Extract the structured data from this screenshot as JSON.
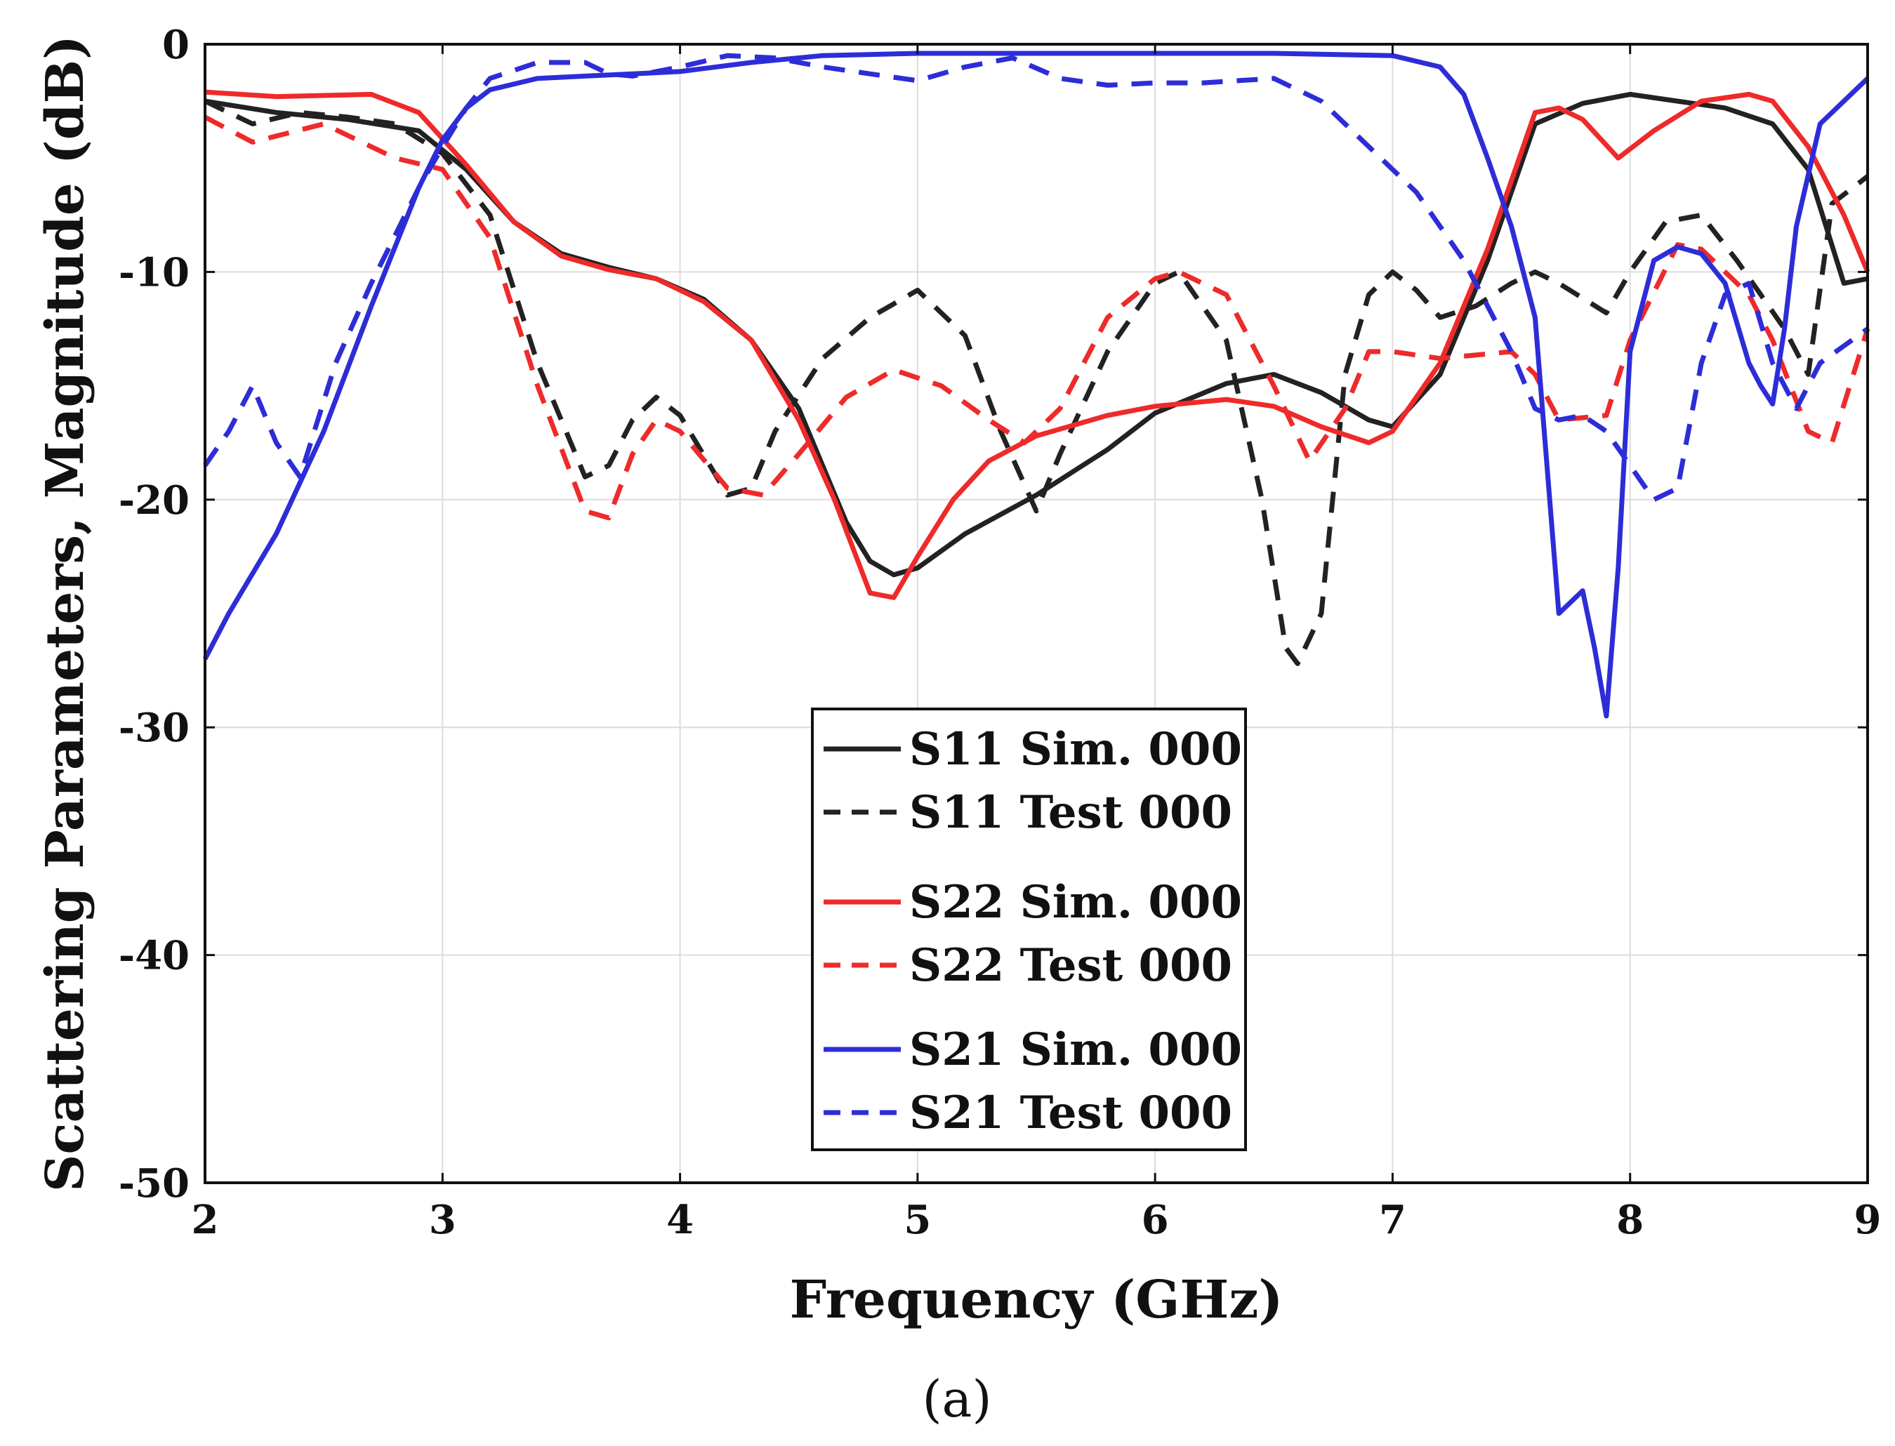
{
  "chart_data": {
    "type": "line",
    "title": "",
    "xlabel": "Frequency (GHz)",
    "ylabel": "Scattering Parameters, Magnitude (dB)",
    "xlim": [
      2,
      9
    ],
    "ylim": [
      -50,
      0
    ],
    "xticks": [
      2,
      3,
      4,
      5,
      6,
      7,
      8,
      9
    ],
    "yticks": [
      0,
      -10,
      -20,
      -30,
      -40,
      -50
    ],
    "grid": true,
    "legend_position": "bottom-center",
    "caption": "(a)",
    "series": [
      {
        "name": "S11 Sim. 000",
        "color": "#222222",
        "dash": "solid",
        "x": [
          2,
          2.3,
          2.6,
          2.9,
          3.1,
          3.3,
          3.5,
          3.7,
          3.9,
          4.1,
          4.3,
          4.5,
          4.7,
          4.8,
          4.9,
          5.0,
          5.2,
          5.5,
          5.8,
          6.0,
          6.3,
          6.5,
          6.7,
          6.9,
          7.0,
          7.2,
          7.4,
          7.6,
          7.8,
          8.0,
          8.2,
          8.4,
          8.6,
          8.75,
          8.9,
          9.0
        ],
        "y": [
          -2.5,
          -3.0,
          -3.3,
          -3.8,
          -5.5,
          -7.8,
          -9.2,
          -9.8,
          -10.3,
          -11.2,
          -13.0,
          -16.0,
          -21.0,
          -22.7,
          -23.3,
          -23.0,
          -21.5,
          -19.8,
          -17.8,
          -16.2,
          -14.9,
          -14.5,
          -15.3,
          -16.5,
          -16.8,
          -14.5,
          -9.5,
          -3.5,
          -2.6,
          -2.2,
          -2.5,
          -2.8,
          -3.5,
          -5.5,
          -10.5,
          -10.3
        ]
      },
      {
        "name": "S11 Test 000",
        "color": "#222222",
        "dash": "dashed",
        "x": [
          2,
          2.2,
          2.4,
          2.6,
          2.8,
          3.0,
          3.2,
          3.4,
          3.6,
          3.7,
          3.8,
          3.9,
          4.0,
          4.2,
          4.3,
          4.4,
          4.6,
          4.8,
          5.0,
          5.2,
          5.35,
          5.5,
          5.6,
          5.8,
          6.0,
          6.1,
          6.3,
          6.45,
          6.55,
          6.6,
          6.7,
          6.8,
          6.9,
          7.0,
          7.1,
          7.2,
          7.35,
          7.5,
          7.6,
          7.7,
          7.9,
          8.0,
          8.15,
          8.3,
          8.45,
          8.55,
          8.65,
          8.75,
          8.85,
          9.0
        ],
        "y": [
          -2.5,
          -3.5,
          -3.0,
          -3.2,
          -3.5,
          -4.8,
          -7.5,
          -14.0,
          -19.0,
          -18.5,
          -16.5,
          -15.5,
          -16.3,
          -19.8,
          -19.5,
          -17.0,
          -13.8,
          -12.0,
          -10.8,
          -12.8,
          -17.0,
          -20.5,
          -18.0,
          -13.5,
          -10.5,
          -10.0,
          -13.0,
          -20.0,
          -26.5,
          -27.2,
          -25.0,
          -14.5,
          -11.0,
          -10.0,
          -10.8,
          -12.0,
          -11.5,
          -10.5,
          -10.0,
          -10.5,
          -11.8,
          -10.0,
          -7.8,
          -7.5,
          -9.5,
          -11.0,
          -12.5,
          -14.5,
          -7.0,
          -5.8
        ]
      },
      {
        "name": "S22 Sim. 000",
        "color": "#ee2a2a",
        "dash": "solid",
        "x": [
          2,
          2.3,
          2.7,
          2.9,
          3.1,
          3.3,
          3.5,
          3.7,
          3.9,
          4.1,
          4.3,
          4.5,
          4.65,
          4.8,
          4.9,
          5.0,
          5.15,
          5.3,
          5.5,
          5.8,
          6.0,
          6.3,
          6.5,
          6.7,
          6.9,
          7.0,
          7.2,
          7.4,
          7.6,
          7.7,
          7.8,
          7.95,
          8.1,
          8.3,
          8.5,
          8.6,
          8.75,
          8.9,
          9.0
        ],
        "y": [
          -2.1,
          -2.3,
          -2.2,
          -3.0,
          -5.3,
          -7.8,
          -9.3,
          -9.9,
          -10.3,
          -11.3,
          -13.0,
          -16.5,
          -20.0,
          -24.1,
          -24.3,
          -22.5,
          -20.0,
          -18.3,
          -17.2,
          -16.3,
          -15.9,
          -15.6,
          -15.9,
          -16.8,
          -17.5,
          -17.0,
          -14.0,
          -9.0,
          -3.0,
          -2.8,
          -3.3,
          -5.0,
          -3.8,
          -2.5,
          -2.2,
          -2.5,
          -4.5,
          -7.5,
          -10.0
        ]
      },
      {
        "name": "S22 Test 000",
        "color": "#ee2a2a",
        "dash": "dashed",
        "x": [
          2,
          2.2,
          2.5,
          2.8,
          3.0,
          3.2,
          3.4,
          3.6,
          3.7,
          3.8,
          3.9,
          4.0,
          4.2,
          4.35,
          4.5,
          4.7,
          4.9,
          5.1,
          5.3,
          5.45,
          5.6,
          5.8,
          6.0,
          6.1,
          6.3,
          6.5,
          6.65,
          6.8,
          6.9,
          7.0,
          7.2,
          7.5,
          7.6,
          7.7,
          7.9,
          8.0,
          8.2,
          8.3,
          8.5,
          8.6,
          8.75,
          8.85,
          9.0
        ],
        "y": [
          -3.2,
          -4.3,
          -3.5,
          -5.0,
          -5.5,
          -8.5,
          -15.0,
          -20.5,
          -20.8,
          -18.0,
          -16.5,
          -17.0,
          -19.5,
          -19.8,
          -18.0,
          -15.5,
          -14.3,
          -15.0,
          -16.5,
          -17.5,
          -16.0,
          -12.0,
          -10.3,
          -10.0,
          -11.0,
          -15.0,
          -18.3,
          -16.0,
          -13.5,
          -13.5,
          -13.8,
          -13.5,
          -14.5,
          -16.5,
          -16.3,
          -13.0,
          -8.8,
          -9.0,
          -11.0,
          -13.0,
          -17.0,
          -17.5,
          -12.5
        ]
      },
      {
        "name": "S21 Sim. 000",
        "color": "#2d2dd8",
        "dash": "solid",
        "x": [
          2,
          2.1,
          2.3,
          2.5,
          2.7,
          2.9,
          3.0,
          3.1,
          3.2,
          3.4,
          3.6,
          3.8,
          4.0,
          4.3,
          4.6,
          5.0,
          5.5,
          6.0,
          6.5,
          7.0,
          7.2,
          7.3,
          7.4,
          7.5,
          7.6,
          7.7,
          7.8,
          7.85,
          7.9,
          7.95,
          8.0,
          8.1,
          8.2,
          8.3,
          8.4,
          8.5,
          8.55,
          8.6,
          8.65,
          8.7,
          8.8,
          9.0
        ],
        "y": [
          -27.0,
          -25.0,
          -21.5,
          -17.0,
          -11.5,
          -6.3,
          -4.2,
          -2.8,
          -2.0,
          -1.5,
          -1.4,
          -1.3,
          -1.2,
          -0.8,
          -0.5,
          -0.4,
          -0.4,
          -0.4,
          -0.4,
          -0.5,
          -1.0,
          -2.2,
          -5.0,
          -8.0,
          -12.0,
          -25.0,
          -24.0,
          -26.5,
          -29.5,
          -23.0,
          -13.5,
          -9.5,
          -8.9,
          -9.2,
          -10.5,
          -14.0,
          -15.0,
          -15.8,
          -12.5,
          -8.0,
          -3.5,
          -1.5
        ]
      },
      {
        "name": "S21 Test 000",
        "color": "#2d2dd8",
        "dash": "dashed",
        "x": [
          2,
          2.1,
          2.2,
          2.3,
          2.4,
          2.55,
          2.7,
          2.9,
          3.0,
          3.1,
          3.2,
          3.4,
          3.6,
          3.7,
          3.8,
          4.0,
          4.2,
          4.4,
          4.6,
          4.8,
          5.0,
          5.2,
          5.4,
          5.6,
          5.8,
          6.0,
          6.2,
          6.5,
          6.7,
          6.9,
          7.1,
          7.3,
          7.5,
          7.6,
          7.7,
          7.8,
          7.9,
          8.0,
          8.1,
          8.2,
          8.3,
          8.4,
          8.5,
          8.6,
          8.7,
          8.8,
          9.0
        ],
        "y": [
          -18.5,
          -17.0,
          -15.0,
          -17.5,
          -19.0,
          -14.0,
          -10.5,
          -6.3,
          -4.5,
          -2.8,
          -1.5,
          -0.8,
          -0.8,
          -1.3,
          -1.4,
          -1.0,
          -0.5,
          -0.6,
          -1.0,
          -1.3,
          -1.6,
          -1.0,
          -0.6,
          -1.5,
          -1.8,
          -1.7,
          -1.7,
          -1.5,
          -2.5,
          -4.5,
          -6.5,
          -9.5,
          -13.5,
          -16.0,
          -16.5,
          -16.3,
          -17.0,
          -18.5,
          -20.0,
          -19.5,
          -14.0,
          -11.0,
          -10.5,
          -14.0,
          -16.0,
          -14.0,
          -12.5
        ]
      }
    ]
  }
}
